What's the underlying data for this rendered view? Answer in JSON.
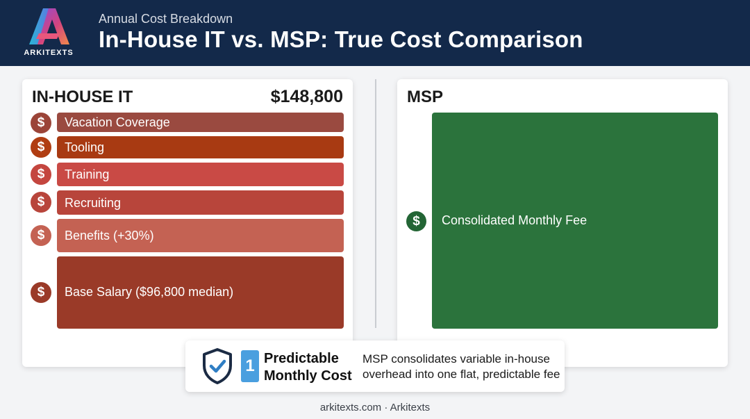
{
  "header": {
    "logo_text": "ARKITEXTS",
    "subtitle": "Annual Cost Breakdown",
    "title": "In-House IT vs. MSP: True Cost Comparison"
  },
  "in_house": {
    "title": "IN-HOUSE IT",
    "total": "$148,800",
    "items": [
      {
        "label": "Vacation Coverage",
        "bar_color": "#9a4a40",
        "icon_color": "#9b4438"
      },
      {
        "label": "Tooling",
        "bar_color": "#a83a12",
        "icon_color": "#b03d12"
      },
      {
        "label": "Training",
        "bar_color": "#c94a45",
        "icon_color": "#c4463f"
      },
      {
        "label": "Recruiting",
        "bar_color": "#b8453b",
        "icon_color": "#b8453b"
      },
      {
        "label": "Benefits (+30%)",
        "bar_color": "#c46253",
        "icon_color": "#c46253"
      },
      {
        "label": "Base Salary ($96,800 median)",
        "bar_color": "#9a3a28",
        "icon_color": "#9a3a28"
      }
    ]
  },
  "msp": {
    "title": "MSP",
    "item_label": "Consolidated Monthly Fee",
    "bar_color": "#2b733c"
  },
  "callout": {
    "number": "1",
    "title_line1": "Predictable",
    "title_line2": "Monthly Cost",
    "desc_line1": "MSP consolidates variable in-house",
    "desc_line2": "overhead into one flat, predictable fee"
  },
  "footer": "arkitexts.com · Arkitexts",
  "icons": {
    "dollar": "dollar-icon",
    "shield": "shield-check-icon",
    "logo": "arkitexts-logo"
  }
}
